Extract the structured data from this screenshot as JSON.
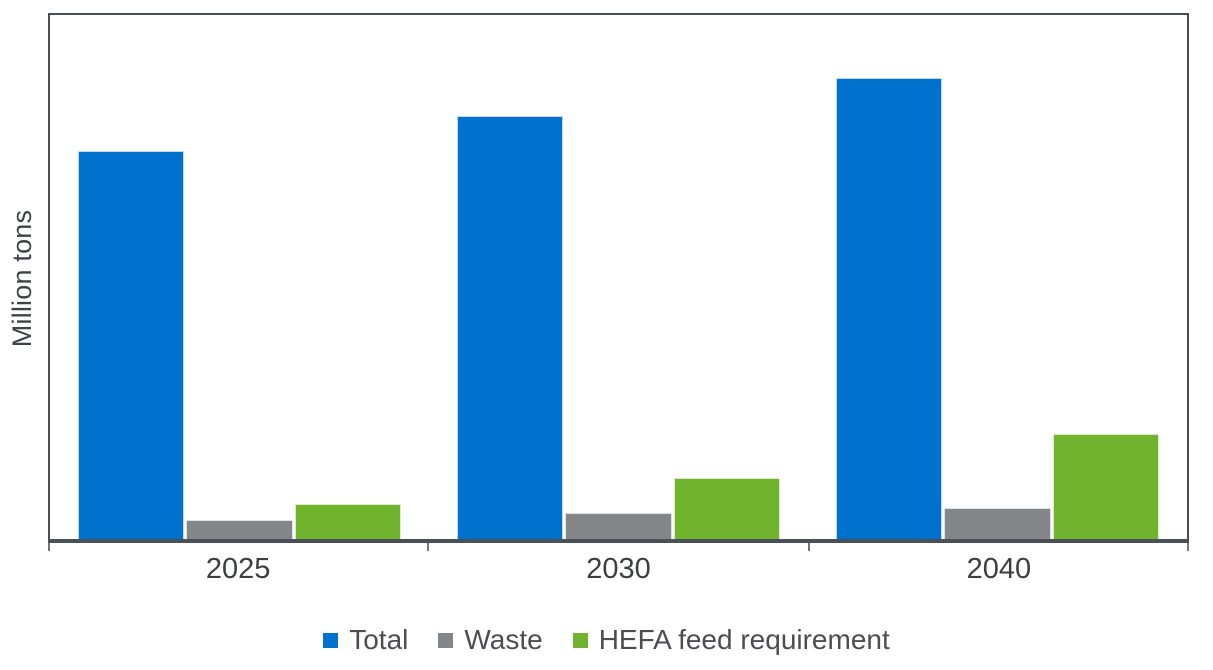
{
  "chart_data": {
    "type": "bar",
    "title": "",
    "xlabel": "",
    "ylabel": "Million tons",
    "categories": [
      "2025",
      "2030",
      "2040"
    ],
    "series": [
      {
        "name": "Total",
        "color": "#0072CD",
        "values": [
          222,
          242,
          264
        ]
      },
      {
        "name": "Waste",
        "color": "#84878A",
        "values": [
          11,
          15,
          18
        ]
      },
      {
        "name": "HEFA feed requirement",
        "color": "#6FB42C",
        "values": [
          20,
          35,
          60
        ]
      }
    ],
    "ylim": [
      0,
      300
    ],
    "grid": false,
    "legend_position": "bottom",
    "axis_color": "#4A5058",
    "tick_color": "#6E757E",
    "label_color": "#3C3E41"
  }
}
